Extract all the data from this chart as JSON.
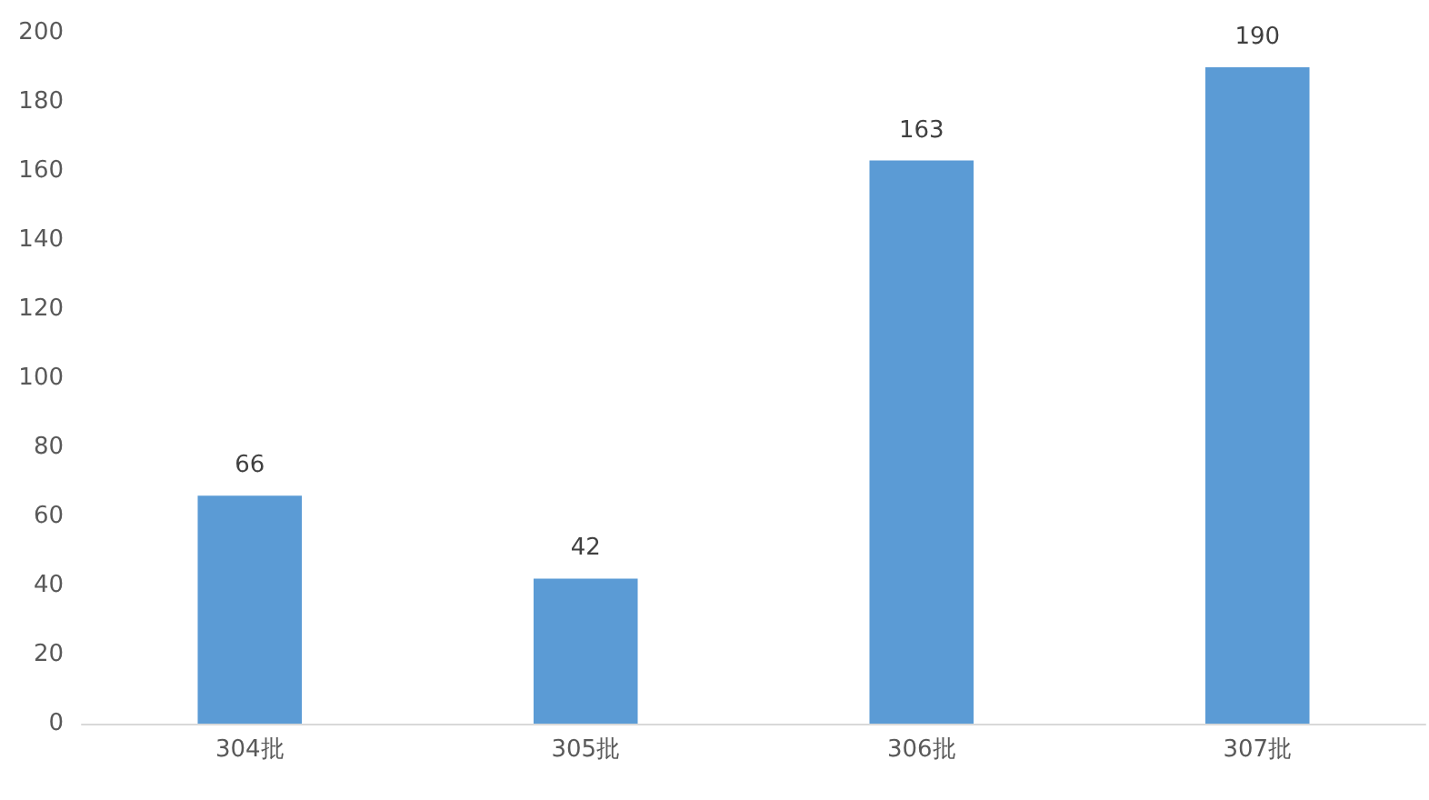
{
  "chart_data": {
    "type": "bar",
    "categories": [
      "304批",
      "305批",
      "306批",
      "307批"
    ],
    "values": [
      66,
      42,
      163,
      190
    ],
    "color": "#5b9bd5",
    "ylim": [
      0,
      200
    ],
    "yticks": [
      0,
      20,
      40,
      60,
      80,
      100,
      120,
      140,
      160,
      180,
      200
    ],
    "grid": false,
    "data_labels": true
  }
}
